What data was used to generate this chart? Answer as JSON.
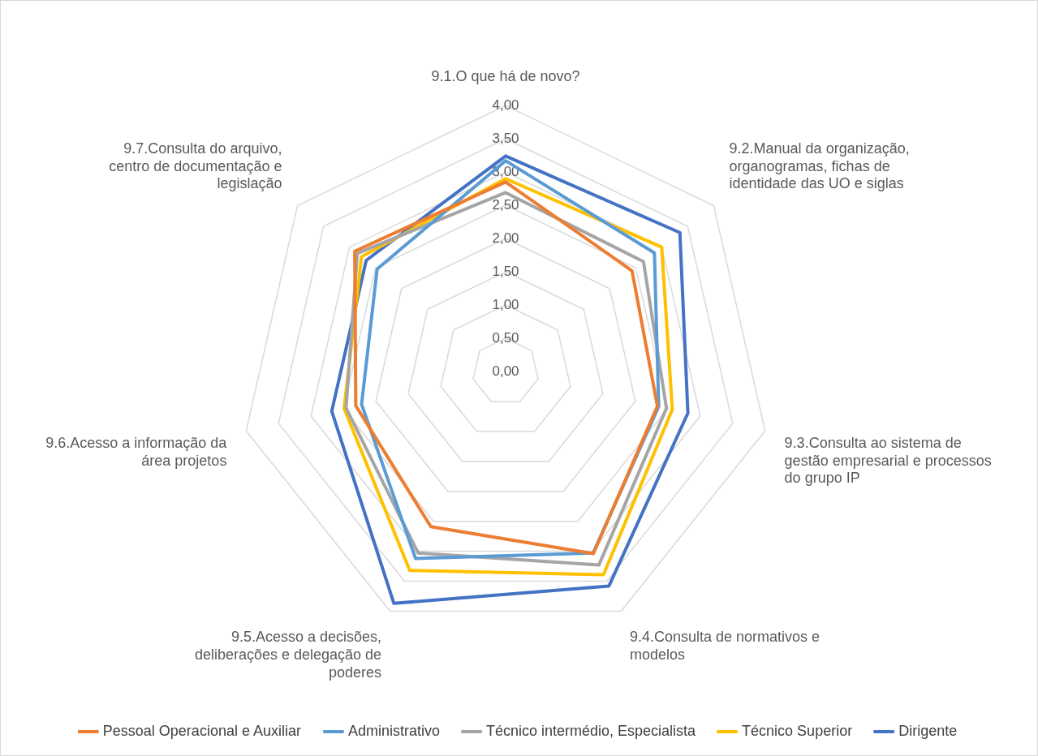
{
  "chart_data": {
    "type": "radar",
    "categories": [
      "9.1.O que há de novo?",
      "9.2.Manual da organização, organogramas, fichas de identidade das UO e siglas",
      "9.3.Consulta ao sistema de gestão empresarial e processos do grupo IP",
      "9.4.Consulta de normativos e modelos",
      "9.5.Acesso a decisões, deliberações e delegação de poderes",
      "9.6.Acesso a informação da área projetos",
      "9.7.Consulta do arquivo, centro de documentação e legislação"
    ],
    "series": [
      {
        "name": "Pessoal Operacional e Auxiliar",
        "color": "#ed7d31",
        "values": [
          2.85,
          2.43,
          2.34,
          3.04,
          2.59,
          2.31,
          2.9
        ]
      },
      {
        "name": "Administrativo",
        "color": "#5b9bd5",
        "values": [
          3.17,
          2.86,
          2.36,
          3.03,
          3.12,
          2.22,
          2.47
        ]
      },
      {
        "name": "Técnico intermédio, Especialista",
        "color": "#a5a5a5",
        "values": [
          2.69,
          2.65,
          2.48,
          3.23,
          3.03,
          2.46,
          2.85
        ]
      },
      {
        "name": "Técnico Superior",
        "color": "#ffc000",
        "values": [
          2.9,
          3.0,
          2.57,
          3.39,
          3.32,
          2.49,
          2.77
        ]
      },
      {
        "name": "Dirigente",
        "color": "#4472c4",
        "values": [
          3.24,
          3.35,
          2.81,
          3.58,
          3.87,
          2.68,
          2.68
        ]
      }
    ],
    "ylim": [
      0,
      4
    ],
    "yticks": [
      {
        "value": 0,
        "label": "0,00"
      },
      {
        "value": 0.5,
        "label": "0,50"
      },
      {
        "value": 1,
        "label": "1,00"
      },
      {
        "value": 1.5,
        "label": "1,50"
      },
      {
        "value": 2,
        "label": "2,00"
      },
      {
        "value": 2.5,
        "label": "2,50"
      },
      {
        "value": 3,
        "label": "3,00"
      },
      {
        "value": 3.5,
        "label": "3,50"
      },
      {
        "value": 4,
        "label": "4,00"
      }
    ],
    "grid": true,
    "legend": "bottom",
    "marker": "none",
    "line_style": "solid"
  }
}
